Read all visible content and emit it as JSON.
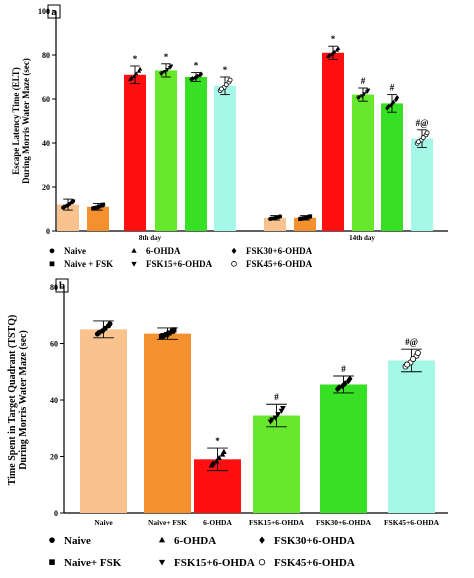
{
  "colors": {
    "naive": "#f9c38f",
    "naive_fsk": "#f5902e",
    "ohda": "#ff0f0f",
    "fsk15": "#67e82c",
    "fsk30": "#38e025",
    "fsk45": "#a5f7e8"
  },
  "chart_data": [
    {
      "type": "bar",
      "panel_label": "a",
      "title": "",
      "ylabel": "Escape Latency Time (ELT)\nDuring Morris Water Maze (sec)",
      "ylim": [
        0,
        100
      ],
      "yticks": [
        0,
        20,
        40,
        60,
        80,
        100
      ],
      "group_labels": [
        "",
        "8th day",
        "14th day"
      ],
      "series": [
        {
          "name": "Naive",
          "values": [
            12,
            null,
            null
          ],
          "err": [
            2.5,
            null,
            null
          ],
          "marker": "●",
          "sig": [
            "",
            "",
            ""
          ]
        },
        {
          "name": "Naive + FSK",
          "values": [
            11,
            null,
            null
          ],
          "err": [
            1.5,
            null,
            null
          ],
          "marker": "■",
          "sig": [
            "",
            "",
            ""
          ]
        },
        {
          "name": "6-OHDA",
          "values": [
            null,
            71,
            81
          ],
          "err": [
            null,
            4,
            3
          ],
          "marker": "▲",
          "sig": [
            "",
            "*",
            "*"
          ]
        },
        {
          "name": "FSK15+6-OHDA",
          "values": [
            null,
            73,
            62
          ],
          "err": [
            null,
            3,
            3
          ],
          "marker": "▼",
          "sig": [
            "",
            "*",
            "#"
          ]
        },
        {
          "name": "FSK30+6-OHDA",
          "values": [
            null,
            70,
            58
          ],
          "err": [
            null,
            2,
            4
          ],
          "marker": "◆",
          "sig": [
            "",
            "*",
            "#"
          ]
        },
        {
          "name": "FSK45+6-OHDA",
          "values": [
            null,
            66,
            42
          ],
          "err": [
            null,
            4,
            4
          ],
          "marker": "○",
          "sig": [
            "",
            "*",
            "#@"
          ]
        }
      ],
      "small_bars": [
        {
          "series": 0,
          "group": 2,
          "value": 6,
          "err": 1
        },
        {
          "series": 1,
          "group": 2,
          "value": 6,
          "err": 1
        }
      ],
      "legend": [
        {
          "marker": "●",
          "text": "Naive"
        },
        {
          "marker": "▲",
          "text": "6-OHDA"
        },
        {
          "marker": "◆",
          "text": "FSK30+6-OHDA"
        },
        {
          "marker": "■",
          "text": "Naive + FSK"
        },
        {
          "marker": "▼",
          "text": "FSK15+6-OHDA"
        },
        {
          "marker": "○",
          "text": "FSK45+6-OHDA"
        }
      ]
    },
    {
      "type": "bar",
      "panel_label": "b",
      "title": "",
      "ylabel": "Time Spent in Target Quadrant (TSTQ)\nDuring Morris Water Maze (sec)",
      "ylim": [
        0,
        80
      ],
      "yticks": [
        0,
        20,
        40,
        60,
        80
      ],
      "categories": [
        "Naive",
        "Naive+ FSK",
        "6-OHDA",
        "FSK15+6-OHDA",
        "FSK30+6-OHDA",
        "FSK45+6-OHDA"
      ],
      "values": [
        65,
        63.5,
        19,
        34.5,
        45.5,
        54
      ],
      "err": [
        3,
        2,
        4,
        4,
        3,
        4
      ],
      "sig": [
        "",
        "",
        "*",
        "#",
        "#",
        "#@"
      ],
      "legend": [
        {
          "marker": "●",
          "text": "Naive"
        },
        {
          "marker": "▲",
          "text": "6-OHDA"
        },
        {
          "marker": "◆",
          "text": "FSK30+6-OHDA"
        },
        {
          "marker": "■",
          "text": "Naive+ FSK"
        },
        {
          "marker": "▼",
          "text": "FSK15+6-OHDA"
        },
        {
          "marker": "○",
          "text": "FSK45+6-OHDA"
        }
      ]
    }
  ]
}
